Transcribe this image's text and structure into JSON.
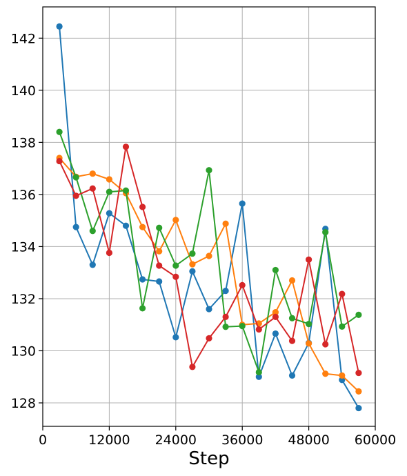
{
  "chart_data": {
    "type": "line",
    "xlabel": "Step",
    "ylabel": "",
    "title": "",
    "xlim": [
      0,
      60000
    ],
    "ylim": [
      127.1,
      143.2
    ],
    "xticks": [
      0,
      12000,
      24000,
      36000,
      48000,
      60000
    ],
    "yticks": [
      128,
      130,
      132,
      134,
      136,
      138,
      140,
      142
    ],
    "grid": true,
    "x": [
      3000,
      6000,
      9000,
      12000,
      15000,
      18000,
      21000,
      24000,
      27000,
      30000,
      33000,
      36000,
      39000,
      42000,
      45000,
      48000,
      51000,
      54000,
      57000
    ],
    "series": [
      {
        "color": "#1f77b4",
        "values": [
          142.45,
          134.75,
          133.3,
          135.28,
          134.8,
          132.74,
          132.66,
          130.52,
          133.05,
          131.6,
          132.3,
          135.65,
          129.0,
          130.66,
          129.05,
          130.3,
          134.68,
          128.88,
          127.8
        ]
      },
      {
        "color": "#ff7f0e",
        "values": [
          137.4,
          136.68,
          136.8,
          136.58,
          136.05,
          134.75,
          133.82,
          135.02,
          133.32,
          133.64,
          134.88,
          131.0,
          131.05,
          131.48,
          132.7,
          130.28,
          129.12,
          129.05,
          128.44
        ]
      },
      {
        "color": "#2ca02c",
        "values": [
          138.4,
          136.66,
          134.6,
          136.1,
          136.15,
          131.63,
          134.72,
          133.27,
          133.73,
          136.93,
          130.92,
          130.95,
          129.18,
          133.1,
          131.25,
          131.03,
          134.55,
          130.93,
          131.38
        ]
      },
      {
        "color": "#d62728",
        "values": [
          137.28,
          135.95,
          136.23,
          133.76,
          137.83,
          135.52,
          133.27,
          132.84,
          129.38,
          130.48,
          131.3,
          132.52,
          130.82,
          131.3,
          130.38,
          133.5,
          130.25,
          132.18,
          129.15
        ]
      }
    ]
  }
}
